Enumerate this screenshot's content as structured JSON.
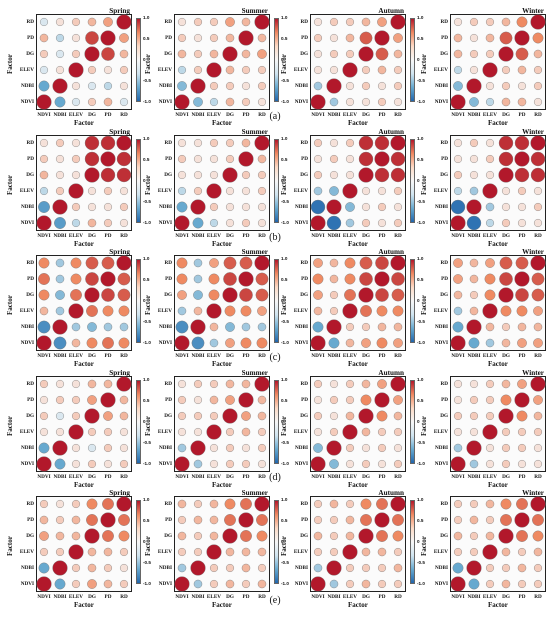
{
  "factors_bottom_to_top": [
    "NDVI",
    "NDBI",
    "ELEV",
    "DG",
    "PD",
    "RD"
  ],
  "factors_left_to_right": [
    "NDVI",
    "NDBI",
    "ELEV",
    "DG",
    "PD",
    "RD"
  ],
  "axis_title": "Factor",
  "colorbar_ticks": [
    "1.0",
    "0.5",
    "0",
    "-0.5",
    "-1.0"
  ],
  "colors": {
    "neg_strong": "#2166ac",
    "neg_mid": "#67a9cf",
    "neutral": "#f7f7f7",
    "pos_mid": "#ef8a62",
    "pos_strong": "#b2182b"
  },
  "row_labels": [
    "(a)",
    "(b)",
    "(c)",
    "(d)",
    "(e)"
  ],
  "seasons": [
    "Spring",
    "Summer",
    "Autumn",
    "Winter"
  ],
  "chart_data": [
    {
      "type": "heatmap",
      "row": "(a)",
      "panels": [
        {
          "title": "Spring",
          "matrix": [
            [
              1,
              -0.5,
              -0.1,
              0.2,
              0.3,
              -0.1
            ],
            [
              -0.5,
              1,
              0.1,
              -0.1,
              -0.2,
              0.1
            ],
            [
              -0.1,
              0.1,
              1,
              0.2,
              0.1,
              0.2
            ],
            [
              0.2,
              -0.1,
              0.2,
              1,
              0.8,
              0.3
            ],
            [
              0.3,
              -0.2,
              0.1,
              0.8,
              1,
              0.4
            ],
            [
              -0.1,
              0.1,
              0.2,
              0.3,
              0.4,
              1
            ]
          ]
        },
        {
          "title": "Summer",
          "matrix": [
            [
              1,
              -0.4,
              -0.2,
              0.3,
              0.2,
              0.1
            ],
            [
              -0.4,
              1,
              0.2,
              0.2,
              0.1,
              0.2
            ],
            [
              -0.2,
              0.2,
              1,
              0.3,
              0.2,
              0.2
            ],
            [
              0.3,
              0.2,
              0.3,
              1,
              0.3,
              0.4
            ],
            [
              0.2,
              0.1,
              0.2,
              0.3,
              1,
              0.3
            ],
            [
              0.1,
              0.2,
              0.2,
              0.4,
              0.3,
              1
            ]
          ]
        },
        {
          "title": "Autumn",
          "matrix": [
            [
              1,
              -0.3,
              0.1,
              0.1,
              0.2,
              0.1
            ],
            [
              -0.3,
              1,
              0.1,
              0.2,
              0.1,
              0.2
            ],
            [
              0.1,
              0.1,
              1,
              0.2,
              0.3,
              0.2
            ],
            [
              0.1,
              0.2,
              0.2,
              1,
              0.7,
              0.3
            ],
            [
              0.2,
              0.1,
              0.3,
              0.7,
              1,
              0.4
            ],
            [
              0.1,
              0.2,
              0.2,
              0.3,
              0.4,
              1
            ]
          ]
        },
        {
          "title": "Winter",
          "matrix": [
            [
              1,
              -0.4,
              -0.2,
              0.3,
              0.3,
              0.1
            ],
            [
              -0.4,
              1,
              0.1,
              0.2,
              0.1,
              0.2
            ],
            [
              -0.2,
              0.1,
              1,
              0.2,
              0.3,
              0.2
            ],
            [
              0.3,
              0.2,
              0.2,
              1,
              0.7,
              0.3
            ],
            [
              0.3,
              0.1,
              0.3,
              0.7,
              1,
              0.5
            ],
            [
              0.1,
              0.2,
              0.2,
              0.3,
              0.5,
              1
            ]
          ]
        }
      ]
    },
    {
      "type": "heatmap",
      "row": "(b)",
      "panels": [
        {
          "title": "Spring",
          "matrix": [
            [
              1,
              -0.6,
              -0.2,
              0.3,
              0.2,
              0.1
            ],
            [
              -0.6,
              1,
              0.2,
              0.1,
              0.1,
              0.2
            ],
            [
              -0.2,
              0.2,
              1,
              0.1,
              0.2,
              0.1
            ],
            [
              0.3,
              0.1,
              0.1,
              1,
              0.9,
              0.9
            ],
            [
              0.2,
              0.1,
              0.2,
              0.9,
              1,
              0.9
            ],
            [
              0.1,
              0.2,
              0.1,
              0.9,
              0.9,
              1
            ]
          ]
        },
        {
          "title": "Summer",
          "matrix": [
            [
              1,
              -0.5,
              -0.2,
              0.1,
              0.2,
              0.1
            ],
            [
              -0.5,
              1,
              0.2,
              0.1,
              0.1,
              0.1
            ],
            [
              -0.2,
              0.2,
              1,
              0.1,
              0.1,
              0.2
            ],
            [
              0.1,
              0.1,
              0.1,
              1,
              0.2,
              0.2
            ],
            [
              0.2,
              0.1,
              0.1,
              0.2,
              1,
              0.3
            ],
            [
              0.1,
              0.1,
              0.2,
              0.2,
              0.3,
              1
            ]
          ]
        },
        {
          "title": "Autumn",
          "matrix": [
            [
              1,
              -0.9,
              -0.3,
              0.2,
              0.1,
              0.2
            ],
            [
              -0.9,
              1,
              -0.4,
              0.1,
              0.2,
              0.1
            ],
            [
              -0.3,
              -0.4,
              1,
              0.1,
              0.1,
              0.2
            ],
            [
              0.2,
              0.1,
              0.1,
              1,
              0.9,
              0.9
            ],
            [
              0.1,
              0.2,
              0.1,
              0.9,
              1,
              0.9
            ],
            [
              0.2,
              0.1,
              0.2,
              0.9,
              0.9,
              1
            ]
          ]
        },
        {
          "title": "Winter",
          "matrix": [
            [
              1,
              -0.9,
              -0.2,
              0.2,
              0.1,
              0.1
            ],
            [
              -0.9,
              1,
              -0.3,
              0.1,
              0.1,
              0.2
            ],
            [
              -0.2,
              -0.3,
              1,
              0.1,
              0.2,
              0.1
            ],
            [
              0.2,
              0.1,
              0.1,
              1,
              0.9,
              0.9
            ],
            [
              0.1,
              0.1,
              0.2,
              0.9,
              1,
              0.9
            ],
            [
              0.1,
              0.2,
              0.1,
              0.9,
              0.9,
              1
            ]
          ]
        }
      ]
    },
    {
      "type": "heatmap",
      "row": "(c)",
      "panels": [
        {
          "title": "Spring",
          "matrix": [
            [
              1,
              -0.7,
              0.3,
              0.5,
              0.6,
              0.5
            ],
            [
              -0.7,
              1,
              -0.3,
              -0.4,
              -0.3,
              -0.3
            ],
            [
              0.3,
              -0.3,
              1,
              0.6,
              0.5,
              0.5
            ],
            [
              0.5,
              -0.4,
              0.6,
              1,
              0.8,
              0.7
            ],
            [
              0.6,
              -0.3,
              0.5,
              0.8,
              1,
              0.7
            ],
            [
              0.5,
              -0.3,
              0.5,
              0.7,
              0.7,
              1
            ]
          ]
        },
        {
          "title": "Summer",
          "matrix": [
            [
              1,
              -0.7,
              -0.3,
              0.4,
              0.5,
              0.5
            ],
            [
              -0.7,
              1,
              0.3,
              -0.4,
              -0.3,
              -0.3
            ],
            [
              -0.3,
              0.3,
              1,
              0.5,
              0.5,
              0.4
            ],
            [
              0.4,
              -0.4,
              0.5,
              1,
              0.8,
              0.7
            ],
            [
              0.5,
              -0.3,
              0.5,
              0.8,
              1,
              0.7
            ],
            [
              0.5,
              -0.3,
              0.4,
              0.7,
              0.7,
              1
            ]
          ]
        },
        {
          "title": "Autumn",
          "matrix": [
            [
              1,
              -0.5,
              0.3,
              0.4,
              0.5,
              0.4
            ],
            [
              -0.5,
              1,
              0.2,
              0.2,
              0.3,
              0.3
            ],
            [
              0.3,
              0.2,
              1,
              0.6,
              0.5,
              0.5
            ],
            [
              0.4,
              0.2,
              0.6,
              1,
              0.8,
              0.7
            ],
            [
              0.5,
              0.3,
              0.5,
              0.8,
              1,
              0.8
            ],
            [
              0.4,
              0.3,
              0.5,
              0.7,
              0.8,
              1
            ]
          ]
        },
        {
          "title": "Winter",
          "matrix": [
            [
              1,
              -0.5,
              -0.3,
              0.3,
              0.4,
              0.4
            ],
            [
              -0.5,
              1,
              0.3,
              0.2,
              0.3,
              0.3
            ],
            [
              -0.3,
              0.3,
              1,
              0.5,
              0.5,
              0.4
            ],
            [
              0.3,
              0.2,
              0.5,
              1,
              0.8,
              0.7
            ],
            [
              0.4,
              0.3,
              0.5,
              0.8,
              1,
              0.7
            ],
            [
              0.4,
              0.3,
              0.4,
              0.7,
              0.7,
              1
            ]
          ]
        }
      ]
    },
    {
      "type": "heatmap",
      "row": "(d)",
      "panels": [
        {
          "title": "Spring",
          "matrix": [
            [
              1,
              -0.5,
              0.1,
              0.2,
              0.1,
              0.2
            ],
            [
              -0.5,
              1,
              0.1,
              -0.1,
              0.2,
              0.1
            ],
            [
              0.1,
              0.1,
              1,
              0.2,
              0.2,
              0.1
            ],
            [
              0.2,
              -0.1,
              0.2,
              1,
              0.4,
              0.3
            ],
            [
              0.1,
              0.2,
              0.2,
              0.4,
              1,
              0.3
            ],
            [
              0.2,
              0.1,
              0.1,
              0.3,
              0.3,
              1
            ]
          ]
        },
        {
          "title": "Summer",
          "matrix": [
            [
              1,
              -0.3,
              0.1,
              0.2,
              0.2,
              0.1
            ],
            [
              -0.3,
              1,
              0.1,
              0.2,
              0.1,
              0.2
            ],
            [
              0.1,
              0.1,
              1,
              0.2,
              0.3,
              0.2
            ],
            [
              0.2,
              0.2,
              0.2,
              1,
              0.4,
              0.3
            ],
            [
              0.2,
              0.1,
              0.3,
              0.4,
              1,
              0.3
            ],
            [
              0.1,
              0.2,
              0.2,
              0.3,
              0.3,
              1
            ]
          ]
        },
        {
          "title": "Autumn",
          "matrix": [
            [
              1,
              -0.4,
              0.1,
              0.2,
              0.1,
              0.2
            ],
            [
              -0.4,
              1,
              0.2,
              0.1,
              0.2,
              0.1
            ],
            [
              0.1,
              0.2,
              1,
              0.3,
              0.2,
              0.2
            ],
            [
              0.2,
              0.1,
              0.3,
              1,
              0.5,
              0.3
            ],
            [
              0.1,
              0.2,
              0.2,
              0.5,
              1,
              0.4
            ],
            [
              0.2,
              0.1,
              0.2,
              0.3,
              0.4,
              1
            ]
          ]
        },
        {
          "title": "Winter",
          "matrix": [
            [
              1,
              -0.3,
              0.1,
              0.2,
              0.1,
              0.1
            ],
            [
              -0.3,
              1,
              0.1,
              0.2,
              0.2,
              0.1
            ],
            [
              0.1,
              0.1,
              1,
              0.2,
              0.2,
              0.2
            ],
            [
              0.2,
              0.2,
              0.2,
              1,
              0.5,
              0.3
            ],
            [
              0.1,
              0.2,
              0.2,
              0.5,
              1,
              0.4
            ],
            [
              0.1,
              0.1,
              0.2,
              0.3,
              0.4,
              1
            ]
          ]
        }
      ]
    },
    {
      "type": "heatmap",
      "row": "(e)",
      "panels": [
        {
          "title": "Spring",
          "matrix": [
            [
              1,
              -0.5,
              0.2,
              0.4,
              0.3,
              0.2
            ],
            [
              -0.5,
              1,
              0.2,
              0.3,
              0.2,
              0.1
            ],
            [
              0.2,
              0.2,
              1,
              0.3,
              0.3,
              0.2
            ],
            [
              0.4,
              0.3,
              0.3,
              1,
              0.6,
              0.5
            ],
            [
              0.3,
              0.2,
              0.3,
              0.6,
              1,
              0.6
            ],
            [
              0.2,
              0.1,
              0.2,
              0.5,
              0.6,
              1
            ]
          ]
        },
        {
          "title": "Summer",
          "matrix": [
            [
              1,
              -0.3,
              0.2,
              0.3,
              0.2,
              0.3
            ],
            [
              -0.3,
              1,
              0.2,
              0.2,
              0.3,
              0.2
            ],
            [
              0.2,
              0.2,
              1,
              0.3,
              0.3,
              0.3
            ],
            [
              0.3,
              0.2,
              0.3,
              1,
              0.6,
              0.5
            ],
            [
              0.2,
              0.3,
              0.3,
              0.6,
              1,
              0.6
            ],
            [
              0.3,
              0.2,
              0.3,
              0.5,
              0.6,
              1
            ]
          ]
        },
        {
          "title": "Autumn",
          "matrix": [
            [
              1,
              -0.3,
              0.2,
              0.3,
              0.2,
              0.2
            ],
            [
              -0.3,
              1,
              0.2,
              0.2,
              0.2,
              0.3
            ],
            [
              0.2,
              0.2,
              1,
              0.3,
              0.3,
              0.2
            ],
            [
              0.3,
              0.2,
              0.3,
              1,
              0.6,
              0.5
            ],
            [
              0.2,
              0.2,
              0.3,
              0.6,
              1,
              0.6
            ],
            [
              0.2,
              0.3,
              0.2,
              0.5,
              0.6,
              1
            ]
          ]
        },
        {
          "title": "Winter",
          "matrix": [
            [
              1,
              -0.5,
              0.2,
              0.3,
              0.2,
              0.2
            ],
            [
              -0.5,
              1,
              0.2,
              0.2,
              0.3,
              0.2
            ],
            [
              0.2,
              0.2,
              1,
              0.3,
              0.2,
              0.3
            ],
            [
              0.3,
              0.2,
              0.3,
              1,
              0.6,
              0.5
            ],
            [
              0.2,
              0.3,
              0.2,
              0.6,
              1,
              0.6
            ],
            [
              0.2,
              0.2,
              0.3,
              0.5,
              0.6,
              1
            ]
          ]
        }
      ]
    }
  ]
}
